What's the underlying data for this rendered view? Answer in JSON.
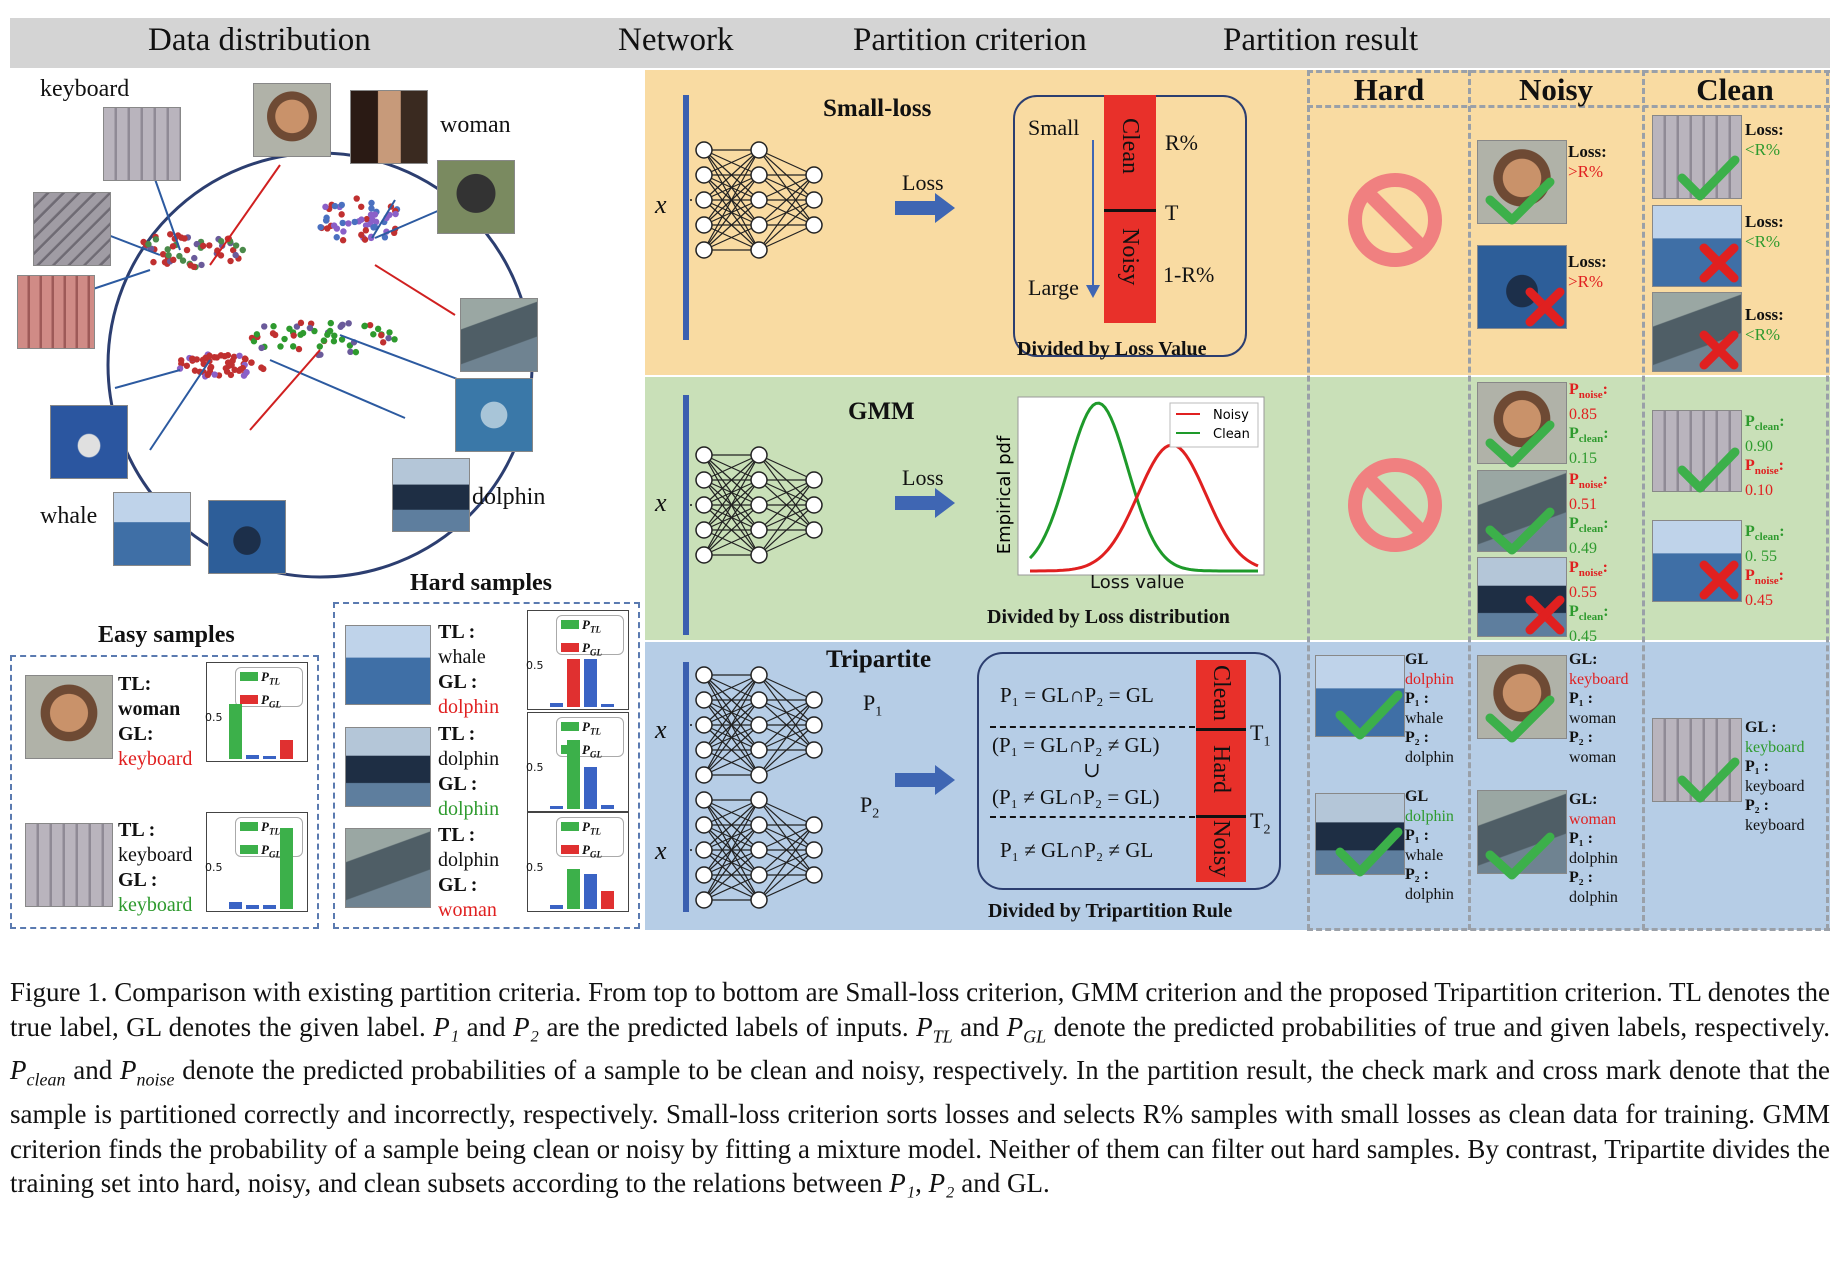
{
  "headers": {
    "data_distribution": "Data distribution",
    "network": "Network",
    "partition_criterion": "Partition criterion",
    "partition_result": "Partition result"
  },
  "result_columns": {
    "hard": "Hard",
    "noisy": "Noisy",
    "clean": "Clean"
  },
  "scatter_labels": {
    "keyboard": "keyboard",
    "woman": "woman",
    "whale": "whale",
    "dolphin": "dolphin"
  },
  "easy": {
    "title": "Easy samples",
    "row1": {
      "tl_key": "TL:",
      "tl_val": "woman",
      "gl_key": "GL:",
      "gl_val": "keyboard"
    },
    "row2": {
      "tl_key": "TL :",
      "tl_val": "keyboard",
      "gl_key": "GL :",
      "gl_val": "keyboard"
    }
  },
  "hard_samples": {
    "title": "Hard samples",
    "row1": {
      "tl_key": "TL :",
      "tl_val": "whale",
      "gl_key": "GL :",
      "gl_val": "dolphin"
    },
    "row2": {
      "tl_key": "TL :",
      "tl_val": "dolphin",
      "gl_key": "GL :",
      "gl_val": "dolphin"
    },
    "row3": {
      "tl_key": "TL :",
      "tl_val": "dolphin",
      "gl_key": "GL :",
      "gl_val": "woman"
    }
  },
  "legend": {
    "ptl": "P",
    "ptl_sub": "TL",
    "pgl": "P",
    "pgl_sub": "GL",
    "tick": "0.5"
  },
  "minibars": [
    {
      "ptl_color": "green",
      "pgl_color": "red",
      "bars": [
        {
          "c": "#3cb04a",
          "v": 0.62
        },
        {
          "c": "#3a63c4",
          "v": 0.04
        },
        {
          "c": "#3a63c4",
          "v": 0.03
        },
        {
          "c": "#e03030",
          "v": 0.22
        }
      ]
    },
    {
      "ptl_color": "green",
      "pgl_color": "green",
      "bars": [
        {
          "c": "#3a63c4",
          "v": 0.08
        },
        {
          "c": "#3a63c4",
          "v": 0.04
        },
        {
          "c": "#3a63c4",
          "v": 0.04
        },
        {
          "c": "#3cb04a",
          "v": 0.92
        }
      ]
    },
    {
      "ptl_color": "green",
      "pgl_color": "red",
      "bars": [
        {
          "c": "#3a63c4",
          "v": 0.04
        },
        {
          "c": "#e03030",
          "v": 0.55
        },
        {
          "c": "#3a63c4",
          "v": 0.55
        },
        {
          "c": "#3a63c4",
          "v": 0.03
        }
      ]
    },
    {
      "ptl_color": "green",
      "pgl_color": "green",
      "bars": [
        {
          "c": "#3a63c4",
          "v": 0.03
        },
        {
          "c": "#3cb04a",
          "v": 0.78
        },
        {
          "c": "#3a63c4",
          "v": 0.48
        },
        {
          "c": "#3a63c4",
          "v": 0.04
        }
      ]
    },
    {
      "ptl_color": "green",
      "pgl_color": "red",
      "bars": [
        {
          "c": "#3a63c4",
          "v": 0.04
        },
        {
          "c": "#3cb04a",
          "v": 0.45
        },
        {
          "c": "#3a63c4",
          "v": 0.4
        },
        {
          "c": "#e03030",
          "v": 0.2
        }
      ]
    }
  ],
  "rows": {
    "small_loss": {
      "title": "Small-loss",
      "x": "x",
      "loss": "Loss",
      "small": "Small",
      "large": "Large",
      "clean": "Clean",
      "noisy": "Noisy",
      "r": "R%",
      "t": "T",
      "one_minus_r": "1-R%",
      "caption": "Divided by Loss Value",
      "noisy_items": [
        {
          "key": "Loss:",
          "val": ">R%"
        },
        {
          "key": "Loss:",
          "val": ">R%"
        }
      ],
      "clean_items": [
        {
          "key": "Loss:",
          "val": "<R%"
        },
        {
          "key": "Loss:",
          "val": "<R%"
        },
        {
          "key": "Loss:",
          "val": "<R%"
        }
      ]
    },
    "gmm": {
      "title": "GMM",
      "x": "x",
      "loss": "Loss",
      "ylabel": "Empirical pdf",
      "xlabel": "Loss value",
      "legend_noisy": "Noisy",
      "legend_clean": "Clean",
      "caption": "Divided by Loss distribution",
      "noisy_items": [
        {
          "noise_val": "0.85",
          "clean_val": "0.15"
        },
        {
          "noise_val": "0.51",
          "clean_val": "0.49"
        },
        {
          "noise_val": "0.55",
          "clean_val": "0.45"
        }
      ],
      "clean_items": [
        {
          "clean_val": "0.90",
          "noise_val": "0.10"
        },
        {
          "clean_val": "0. 55",
          "noise_val": "0.45"
        }
      ],
      "p": "P",
      "noise_sub": "noise",
      "clean_sub": "clean",
      "colon": ":"
    },
    "tripartite": {
      "title": "Tripartite",
      "x": "x",
      "p1": "P",
      "p1_sub": "1",
      "p2": "P",
      "p2_sub": "2",
      "rule1": "P₁ = GL∩P₂ = GL",
      "rule2a": "(P₁ = GL∩P₂ ≠ GL)",
      "rule2b": "∪",
      "rule2c": "(P₁ ≠ GL∩P₂ = GL)",
      "rule3": "P₁ ≠ GL∩P₂ ≠ GL",
      "clean": "Clean",
      "hard": "Hard",
      "noisy": "Noisy",
      "t1": "T",
      "t1_sub": "1",
      "t2": "T",
      "t2_sub": "2",
      "caption": "Divided by Tripartition Rule",
      "hard_items": [
        {
          "gl": "GL",
          "gl_val": "dolphin",
          "p1": "P₁ :",
          "p1_val": "whale",
          "p2": "P₂ :",
          "p2_val": "dolphin"
        },
        {
          "gl": "GL",
          "gl_val": "dolphin",
          "p1": "P₁ :",
          "p1_val": "whale",
          "p2": "P₂ :",
          "p2_val": "dolphin"
        }
      ],
      "noisy_items": [
        {
          "gl": "GL:",
          "gl_val": "keyboard",
          "p1": "P₁ :",
          "p1_val": "woman",
          "p2": "P₂ :",
          "p2_val": "woman"
        },
        {
          "gl": "GL:",
          "gl_val": "woman",
          "p1": "P₁ :",
          "p1_val": "dolphin",
          "p2": "P₂ :",
          "p2_val": "dolphin"
        }
      ],
      "clean_items": [
        {
          "gl": "GL :",
          "gl_val": "keyboard",
          "p1": "P₁ :",
          "p1_val": "keyboard",
          "p2": "P₂ :",
          "p2_val": "keyboard"
        }
      ]
    }
  },
  "caption": {
    "s1": "Figure 1.  Comparison with existing partition criteria.  From top to bottom are Small-loss criterion, GMM criterion and the proposed Tripartition criterion.  TL denotes the true label, GL denotes the given label. ",
    "p1": "P₁",
    "s2": " and ",
    "p2": "P₂",
    "s3": " are the predicted labels of inputs. ",
    "ptl": "P",
    "ptl_sub": "TL",
    "s4": " and ",
    "pgl": "P",
    "pgl_sub": "GL",
    "s5": " denote the predicted probabilities of true and given labels, respectively. ",
    "pclean": "P",
    "pclean_sub": "clean",
    "s6": " and ",
    "pnoise": "P",
    "pnoise_sub": "noise",
    "s7": " denote the predicted probabilities of a sample to be clean and noisy, respectively.  In the partition result, the check mark and cross mark denote that the sample is partitioned correctly and incorrectly, respectively.  Small-loss criterion sorts losses and selects R% samples with small losses as clean data for training.  GMM criterion finds the probability of a sample being clean or noisy by fitting a mixture model.  Neither of them can filter out hard samples.  By contrast, Tripartite divides the training set into hard, noisy, and clean subsets according to the relations between ",
    "p1b": "P₁",
    "s8": ", ",
    "p2b": "P₂",
    "s9": " and GL."
  }
}
